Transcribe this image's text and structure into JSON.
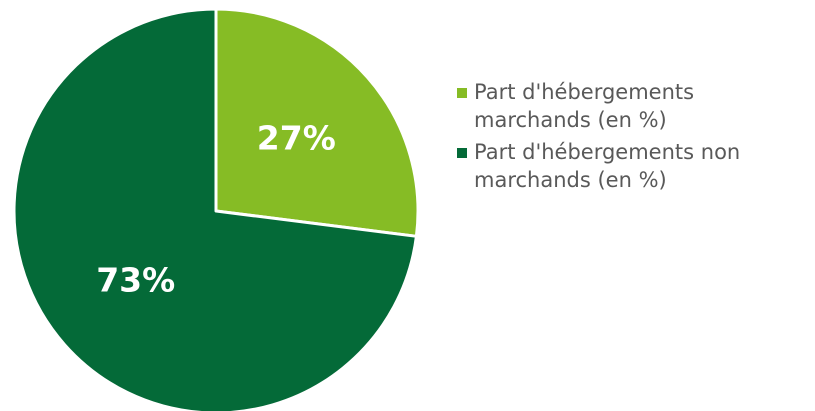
{
  "chart_data": {
    "type": "pie",
    "title": "",
    "start_angle_deg": 0,
    "direction": "clockwise",
    "legend_position": "right",
    "slices": [
      {
        "label": "Part d'hébergements marchands (en %)",
        "value": 27,
        "display": "27%",
        "color": "#86bc25"
      },
      {
        "label": "Part d'hébergements non marchands (en %)",
        "value": 73,
        "display": "73%",
        "color": "#046a38"
      }
    ]
  }
}
